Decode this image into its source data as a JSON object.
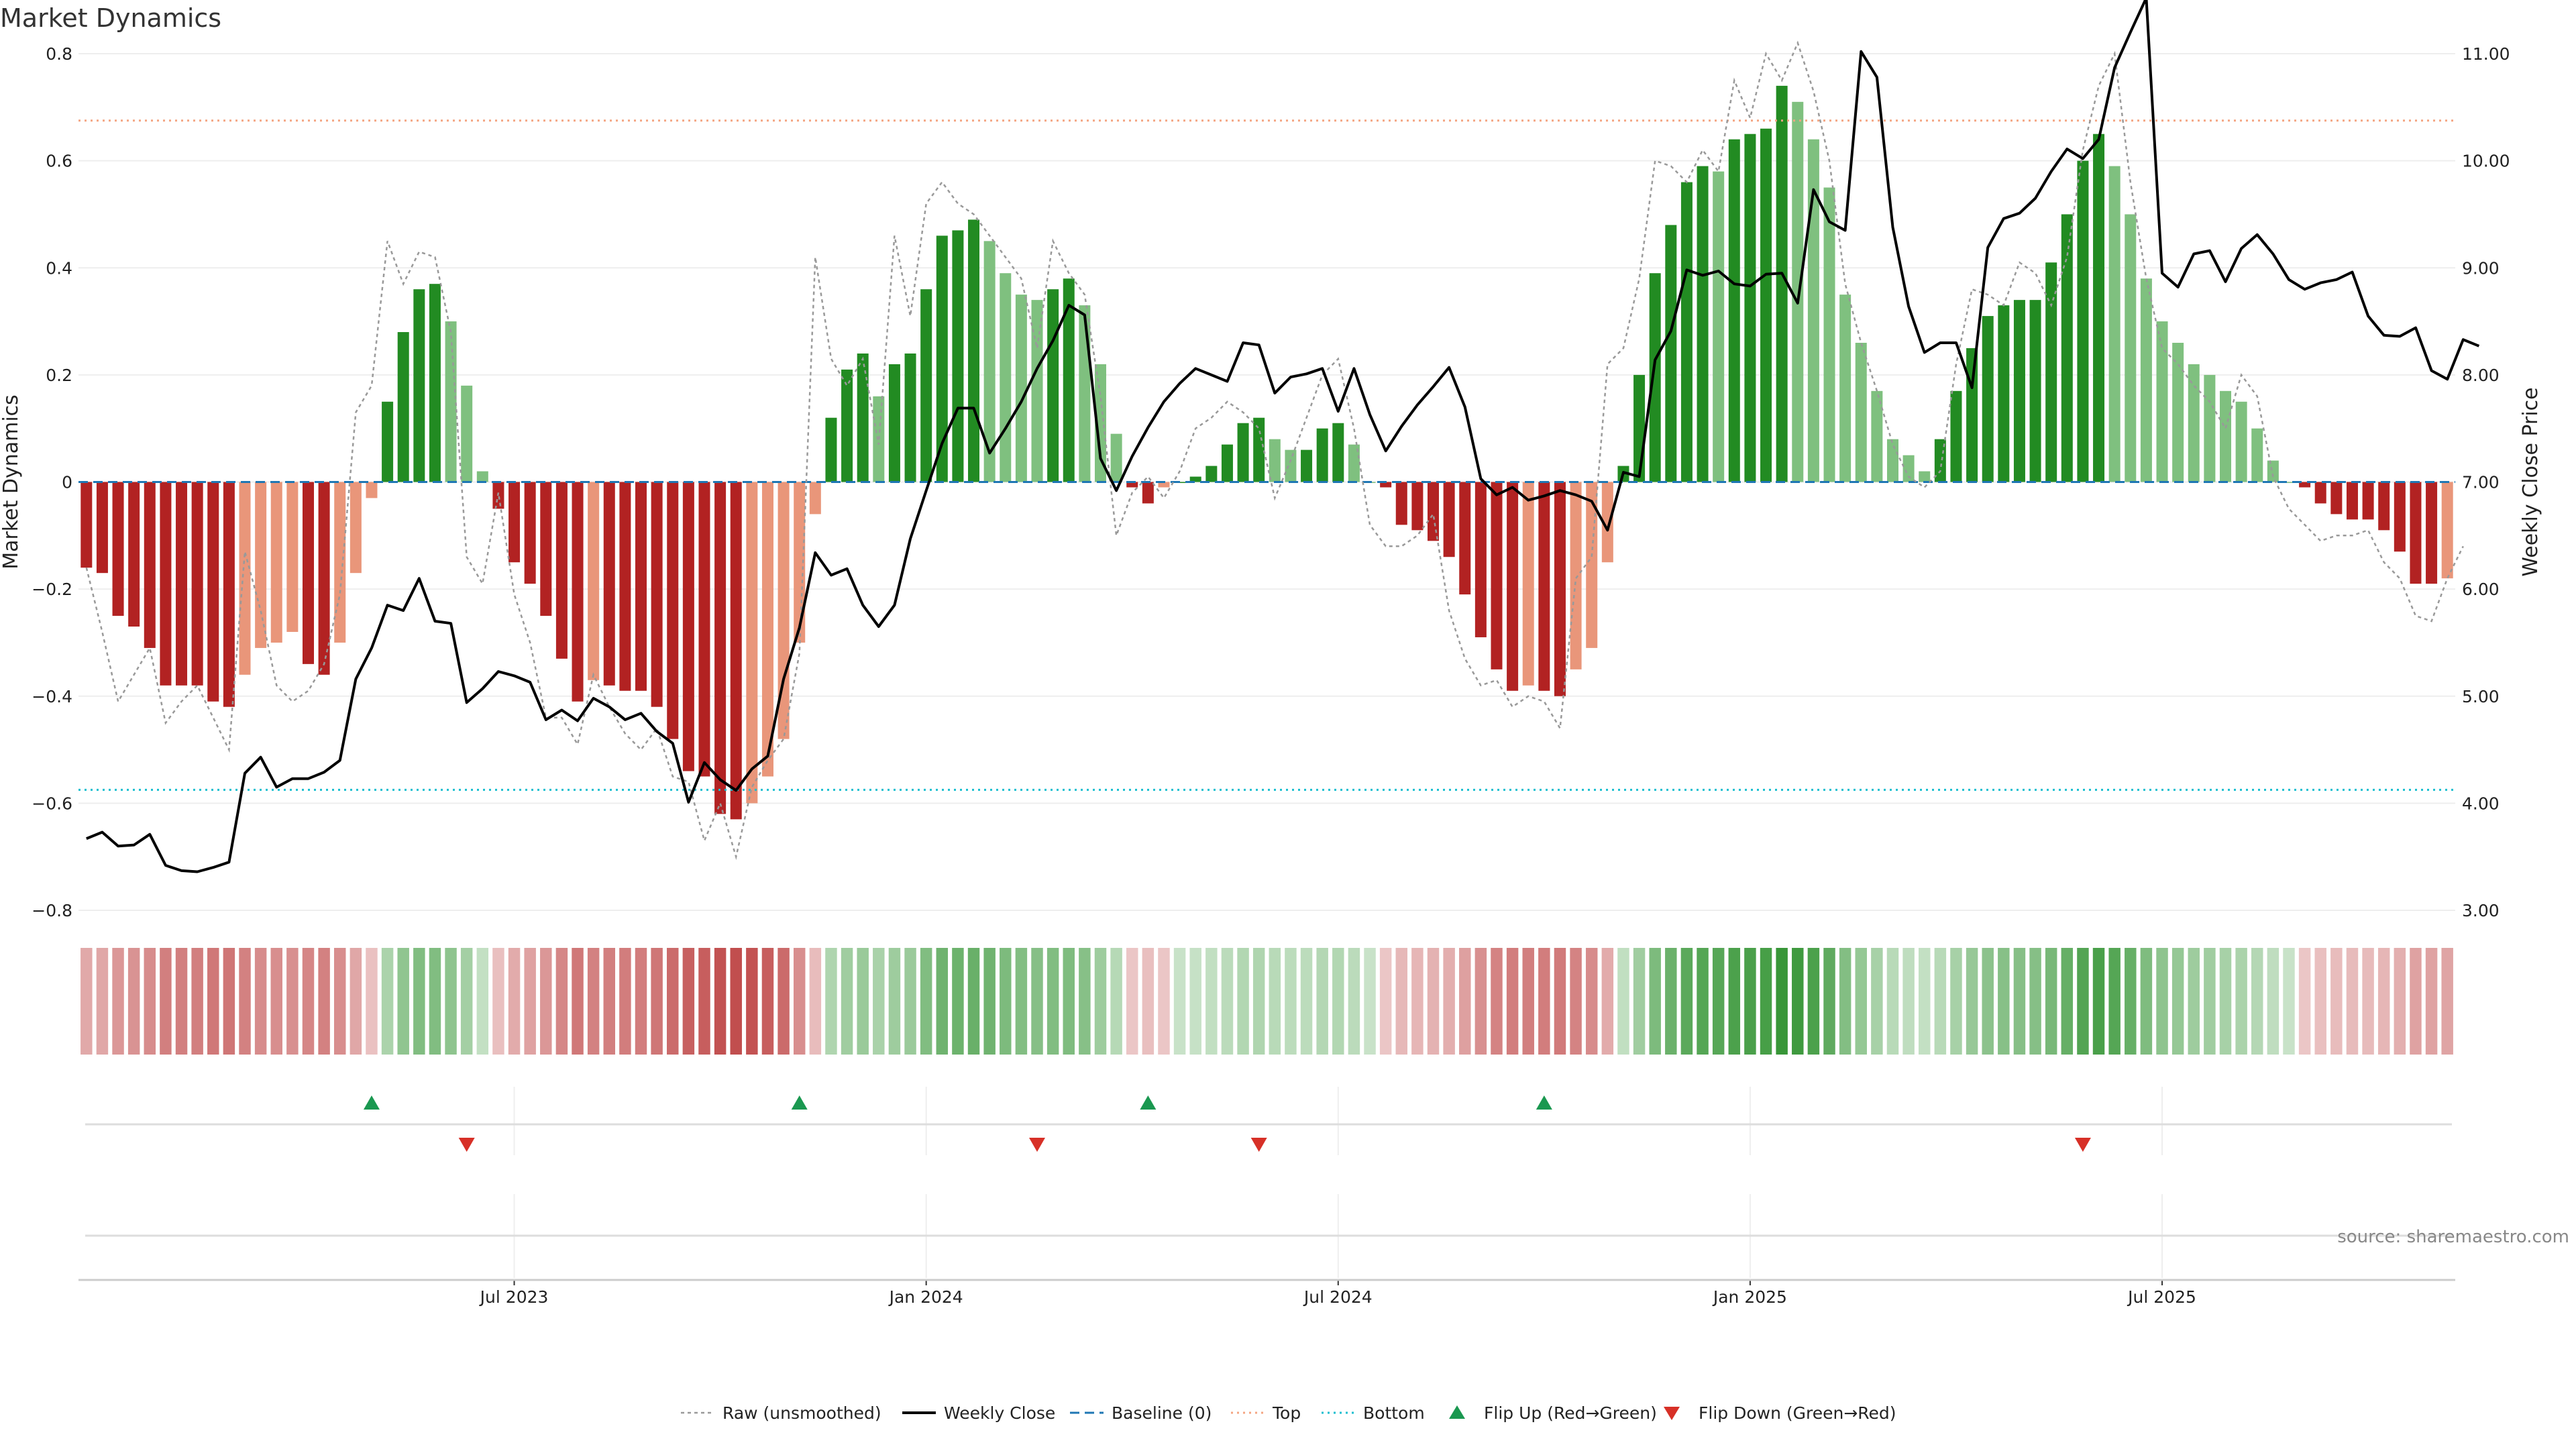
{
  "title": "Market Dynamics",
  "source": "source: sharemaestro.com",
  "chart_data": {
    "type": "bar",
    "title": "Market Dynamics",
    "ylabel": "Market Dynamics",
    "y2label": "Weekly Close Price",
    "ylim": [
      -0.8,
      0.8
    ],
    "y2lim": [
      3.0,
      11.0
    ],
    "yticks": [
      "−0.8",
      "−0.6",
      "−0.4",
      "−0.2",
      "0",
      "0.2",
      "0.4",
      "0.6",
      "0.8"
    ],
    "y2ticks": [
      "3.00",
      "4.00",
      "5.00",
      "6.00",
      "7.00",
      "8.00",
      "9.00",
      "10.00",
      "11.00"
    ],
    "xticks": [
      {
        "label": "Jul 2023",
        "week": 27
      },
      {
        "label": "Jan 2024",
        "week": 53
      },
      {
        "label": "Jul 2024",
        "week": 79
      },
      {
        "label": "Jan 2025",
        "week": 105
      },
      {
        "label": "Jul 2025",
        "week": 131
      }
    ],
    "top_level": 0.675,
    "bottom_level": -0.575,
    "smoothed": [
      -0.16,
      -0.17,
      -0.25,
      -0.27,
      -0.31,
      -0.38,
      -0.38,
      -0.38,
      -0.41,
      -0.42,
      -0.36,
      -0.31,
      -0.3,
      -0.28,
      -0.34,
      -0.36,
      -0.3,
      -0.17,
      -0.03,
      0.15,
      0.28,
      0.36,
      0.37,
      0.3,
      0.18,
      0.02,
      -0.05,
      -0.15,
      -0.19,
      -0.25,
      -0.33,
      -0.41,
      -0.37,
      -0.38,
      -0.39,
      -0.39,
      -0.42,
      -0.48,
      -0.54,
      -0.55,
      -0.62,
      -0.63,
      -0.6,
      -0.55,
      -0.48,
      -0.3,
      -0.06,
      0.12,
      0.21,
      0.24,
      0.16,
      0.22,
      0.24,
      0.36,
      0.46,
      0.47,
      0.49,
      0.45,
      0.39,
      0.35,
      0.34,
      0.36,
      0.38,
      0.33,
      0.22,
      0.09,
      -0.01,
      -0.04,
      -0.01,
      0.0,
      0.01,
      0.03,
      0.07,
      0.11,
      0.12,
      0.08,
      0.06,
      0.06,
      0.1,
      0.11,
      0.07,
      0.0,
      -0.01,
      -0.08,
      -0.09,
      -0.11,
      -0.14,
      -0.21,
      -0.29,
      -0.35,
      -0.39,
      -0.38,
      -0.39,
      -0.4,
      -0.35,
      -0.31,
      -0.15,
      0.03,
      0.2,
      0.39,
      0.48,
      0.56,
      0.59,
      0.58,
      0.64,
      0.65,
      0.66,
      0.74,
      0.71,
      0.64,
      0.55,
      0.35,
      0.26,
      0.17,
      0.08,
      0.05,
      0.02,
      0.08,
      0.17,
      0.25,
      0.31,
      0.33,
      0.34,
      0.34,
      0.41,
      0.5,
      0.6,
      0.65,
      0.59,
      0.5,
      0.38,
      0.3,
      0.26,
      0.22,
      0.2,
      0.17,
      0.15,
      0.1,
      0.04,
      0.0,
      -0.01,
      -0.04,
      -0.06,
      -0.07,
      -0.07,
      -0.09,
      -0.13,
      -0.19,
      -0.19,
      -0.18
    ],
    "raw": [
      -0.16,
      -0.28,
      -0.41,
      -0.36,
      -0.31,
      -0.45,
      -0.41,
      -0.38,
      -0.44,
      -0.5,
      -0.13,
      -0.24,
      -0.38,
      -0.41,
      -0.39,
      -0.34,
      -0.21,
      0.13,
      0.18,
      0.45,
      0.37,
      0.43,
      0.42,
      0.28,
      -0.14,
      -0.19,
      -0.02,
      -0.21,
      -0.3,
      -0.44,
      -0.44,
      -0.49,
      -0.36,
      -0.42,
      -0.47,
      -0.5,
      -0.46,
      -0.55,
      -0.56,
      -0.67,
      -0.6,
      -0.7,
      -0.57,
      -0.52,
      -0.48,
      -0.32,
      0.42,
      0.23,
      0.18,
      0.23,
      0.07,
      0.46,
      0.31,
      0.52,
      0.56,
      0.52,
      0.5,
      0.46,
      0.42,
      0.38,
      0.25,
      0.45,
      0.39,
      0.35,
      0.16,
      -0.1,
      -0.02,
      0.01,
      -0.03,
      0.02,
      0.1,
      0.12,
      0.15,
      0.13,
      0.1,
      -0.03,
      0.04,
      0.12,
      0.2,
      0.23,
      0.1,
      -0.08,
      -0.12,
      -0.12,
      -0.1,
      -0.06,
      -0.24,
      -0.33,
      -0.38,
      -0.37,
      -0.42,
      -0.4,
      -0.41,
      -0.46,
      -0.18,
      -0.14,
      0.22,
      0.25,
      0.38,
      0.6,
      0.59,
      0.56,
      0.62,
      0.58,
      0.75,
      0.68,
      0.8,
      0.75,
      0.82,
      0.73,
      0.6,
      0.37,
      0.26,
      0.17,
      0.07,
      0.01,
      -0.01,
      0.02,
      0.22,
      0.36,
      0.35,
      0.33,
      0.41,
      0.39,
      0.33,
      0.42,
      0.62,
      0.74,
      0.8,
      0.56,
      0.38,
      0.25,
      0.22,
      0.18,
      0.15,
      0.1,
      0.2,
      0.16,
      0.01,
      -0.05,
      -0.08,
      -0.11,
      -0.1,
      -0.1,
      -0.09,
      -0.15,
      -0.18,
      -0.25,
      -0.26,
      -0.18,
      -0.12
    ],
    "close": [
      3.67,
      3.73,
      3.6,
      3.61,
      3.71,
      3.42,
      3.37,
      3.36,
      3.4,
      3.45,
      4.28,
      4.43,
      4.15,
      4.23,
      4.23,
      4.29,
      4.4,
      5.16,
      5.45,
      5.85,
      5.8,
      6.1,
      5.7,
      5.68,
      4.94,
      5.07,
      5.23,
      5.19,
      5.13,
      4.78,
      4.87,
      4.77,
      4.98,
      4.9,
      4.78,
      4.84,
      4.67,
      4.56,
      4.01,
      4.38,
      4.22,
      4.12,
      4.32,
      4.44,
      5.16,
      5.64,
      6.34,
      6.13,
      6.19,
      5.85,
      5.65,
      5.85,
      6.47,
      6.92,
      7.36,
      7.69,
      7.69,
      7.27,
      7.5,
      7.75,
      8.06,
      8.32,
      8.65,
      8.56,
      7.22,
      6.92,
      7.24,
      7.51,
      7.75,
      7.92,
      8.06,
      8.0,
      7.94,
      8.3,
      8.28,
      7.83,
      7.98,
      8.01,
      8.06,
      7.66,
      8.06,
      7.63,
      7.29,
      7.52,
      7.72,
      7.89,
      8.07,
      7.7,
      7.03,
      6.88,
      6.95,
      6.83,
      6.87,
      6.92,
      6.88,
      6.82,
      6.55,
      7.09,
      7.05,
      8.14,
      8.41,
      8.98,
      8.93,
      8.97,
      8.85,
      8.83,
      8.94,
      8.95,
      8.67,
      9.73,
      9.43,
      9.35,
      11.02,
      10.78,
      9.38,
      8.64,
      8.21,
      8.3,
      8.3,
      7.88,
      9.19,
      9.46,
      9.51,
      9.65,
      9.9,
      10.11,
      10.02,
      10.2,
      10.87,
      11.2,
      11.52,
      8.95,
      8.82,
      9.13,
      9.16,
      8.87,
      9.18,
      9.31,
      9.13,
      8.89,
      8.8,
      8.86,
      8.89,
      8.96,
      8.55,
      8.37,
      8.36,
      8.44,
      8.04,
      7.96,
      8.33,
      8.27
    ],
    "flip_up_weeks": [
      18,
      45,
      67,
      92
    ],
    "flip_down_weeks": [
      24,
      60,
      74,
      126
    ],
    "colors": {
      "strong_green": "#228B22",
      "light_green": "#7FC07F",
      "strong_red": "#B22222",
      "light_red": "#E9967A",
      "close_line": "#000000",
      "raw_line": "#999999",
      "baseline": "#1f77b4",
      "top": "#f4a582",
      "bottom": "#17becf",
      "flip_up": "#1a9850",
      "flip_down": "#d73027"
    },
    "legend": [
      {
        "label": "Raw (unsmoothed)",
        "marker": "dotted-line"
      },
      {
        "label": "Weekly Close",
        "marker": "solid-line"
      },
      {
        "label": "Baseline (0)",
        "marker": "dashed-line"
      },
      {
        "label": "Top",
        "marker": "dotted-line"
      },
      {
        "label": "Bottom",
        "marker": "dotted-line"
      },
      {
        "label": "Flip Up (Red→Green)",
        "marker": "triangle-up"
      },
      {
        "label": "Flip Down (Green→Red)",
        "marker": "triangle-down"
      }
    ],
    "legend_position": "bottom",
    "grid": true
  }
}
